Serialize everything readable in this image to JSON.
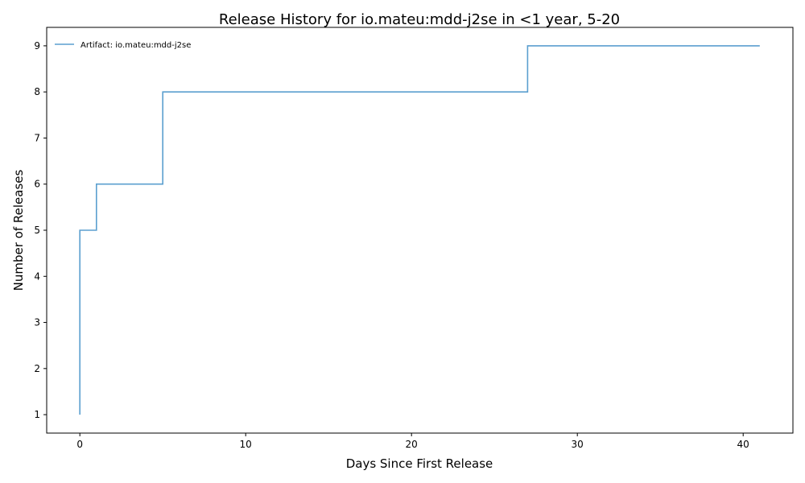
{
  "chart_data": {
    "type": "line",
    "title": "Release History for io.mateu:mdd-j2se in <1 year, 5-20",
    "xlabel": "Days Since First Release",
    "ylabel": "Number of Releases",
    "xlim": [
      -2,
      43
    ],
    "ylim": [
      0.6,
      9.4
    ],
    "xticks": [
      0,
      10,
      20,
      30,
      40
    ],
    "yticks": [
      1,
      2,
      3,
      4,
      5,
      6,
      7,
      8,
      9
    ],
    "grid": false,
    "legend_position": "top-left",
    "step": "post",
    "series": [
      {
        "name": "Artifact: io.mateu:mdd-j2se",
        "color": "#5b9fcf",
        "x": [
          0,
          0,
          0,
          0,
          0,
          1,
          5,
          5,
          27,
          41
        ],
        "y": [
          1,
          2,
          3,
          4,
          5,
          6,
          7,
          8,
          9,
          9
        ]
      }
    ]
  }
}
